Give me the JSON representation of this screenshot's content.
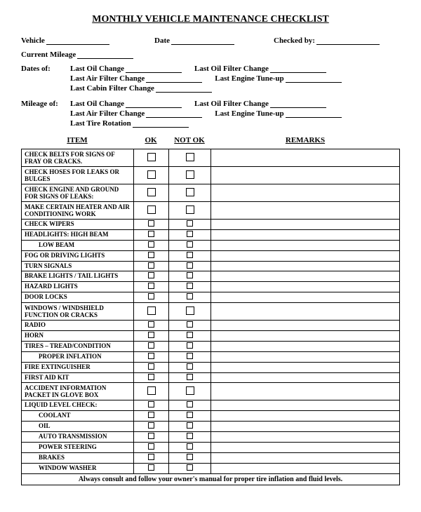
{
  "title": "MONTHLY VEHICLE MAINTENANCE CHECKLIST",
  "header": {
    "vehicle_label": "Vehicle",
    "date_label": "Date",
    "checked_by_label": "Checked by:",
    "mileage_label": "Current Mileage"
  },
  "dates_of": {
    "label": "Dates of:",
    "items": [
      {
        "left": "Last Oil Change",
        "right": "Last Oil Filter Change"
      },
      {
        "left": "Last Air Filter Change",
        "right": "Last Engine Tune-up"
      },
      {
        "left": "Last Cabin Filter Change",
        "right": ""
      }
    ]
  },
  "mileage_of": {
    "label": "Mileage of:",
    "items": [
      {
        "left": "Last Oil Change",
        "right": "Last Oil Filter Change"
      },
      {
        "left": "Last Air Filter Change",
        "right": "Last Engine Tune-up"
      },
      {
        "left": "Last Tire Rotation",
        "right": ""
      }
    ]
  },
  "columns": {
    "item": "ITEM",
    "ok": "OK",
    "notok": "NOT OK",
    "remarks": "REMARKS"
  },
  "rows": [
    {
      "label": "CHECK BELTS FOR SIGNS OF FRAY OR CRACKS.",
      "size": "big",
      "indent": false
    },
    {
      "label": "CHECK HOSES FOR LEAKS OR BULGES",
      "size": "big",
      "indent": false
    },
    {
      "label": "CHECK ENGINE AND GROUND FOR SIGNS OF LEAKS:",
      "size": "big",
      "indent": false
    },
    {
      "label": "MAKE CERTAIN  HEATER AND  AIR CONDITIONING WORK",
      "size": "big",
      "indent": false
    },
    {
      "label": "CHECK WIPERS",
      "size": "small",
      "indent": false
    },
    {
      "label": "HEADLIGHTS:   HIGH BEAM",
      "size": "small",
      "indent": false
    },
    {
      "label": "LOW BEAM",
      "size": "small",
      "indent": true
    },
    {
      "label": "FOG OR DRIVING LIGHTS",
      "size": "small",
      "indent": false
    },
    {
      "label": "TURN SIGNALS",
      "size": "small",
      "indent": false
    },
    {
      "label": "BRAKE LIGHTS / TAIL LIGHTS",
      "size": "small",
      "indent": false
    },
    {
      "label": "HAZARD LIGHTS",
      "size": "small",
      "indent": false
    },
    {
      "label": "DOOR LOCKS",
      "size": "small",
      "indent": false
    },
    {
      "label": "WINDOWS / WINDSHIELD FUNCTION OR CRACKS",
      "size": "big",
      "indent": false
    },
    {
      "label": "RADIO",
      "size": "small",
      "indent": false
    },
    {
      "label": "HORN",
      "size": "small",
      "indent": false
    },
    {
      "label": "TIRES – TREAD/CONDITION",
      "size": "small",
      "indent": false
    },
    {
      "label": "PROPER INFLATION",
      "size": "small",
      "indent": true
    },
    {
      "label": "FIRE EXTINGUISHER",
      "size": "small",
      "indent": false
    },
    {
      "label": "FIRST AID KIT",
      "size": "small",
      "indent": false
    },
    {
      "label": "ACCIDENT INFORMATION PACKET IN GLOVE BOX",
      "size": "big",
      "indent": false
    },
    {
      "label": "LIQUID LEVEL CHECK:",
      "size": "small",
      "indent": false
    },
    {
      "label": "COOLANT",
      "size": "small",
      "indent": true
    },
    {
      "label": "OIL",
      "size": "small",
      "indent": true
    },
    {
      "label": "AUTO TRANSMISSION",
      "size": "small",
      "indent": true
    },
    {
      "label": "POWER STEERING",
      "size": "small",
      "indent": true
    },
    {
      "label": "BRAKES",
      "size": "small",
      "indent": true
    },
    {
      "label": "WINDOW WASHER",
      "size": "small",
      "indent": true
    }
  ],
  "footer": "Always consult and follow your owner's manual for proper tire inflation and fluid levels."
}
